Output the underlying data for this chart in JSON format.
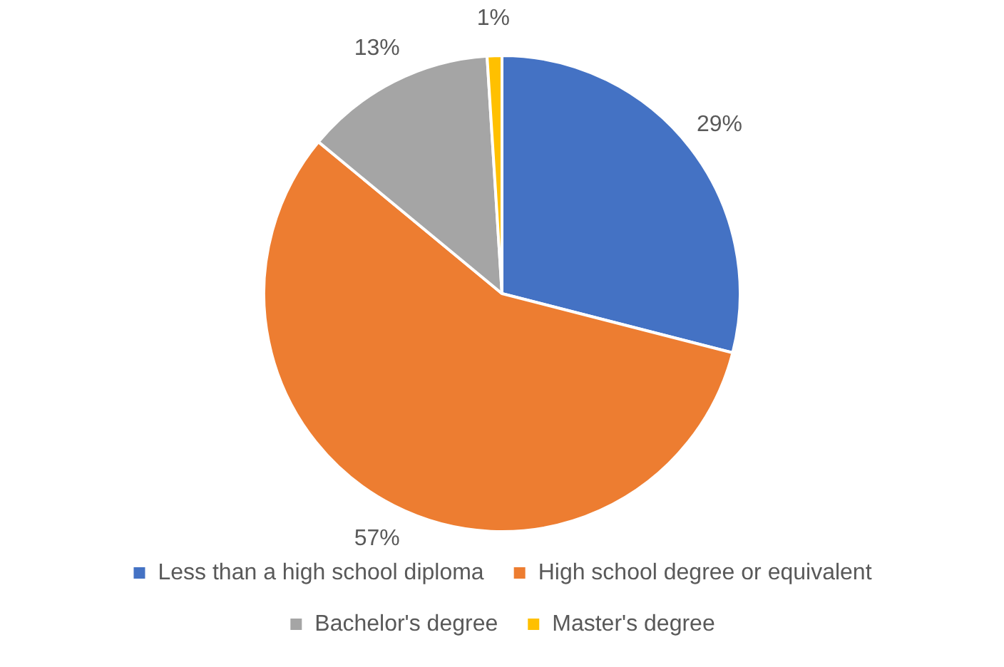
{
  "chart_data": {
    "type": "pie",
    "categories": [
      "Less than a high school diploma",
      "High school degree or equivalent",
      "Bachelor's degree",
      "Master's degree"
    ],
    "values": [
      29,
      57,
      13,
      1
    ],
    "colors": [
      "#4472c4",
      "#ed7d31",
      "#a5a5a5",
      "#ffc000"
    ],
    "value_labels": [
      "29%",
      "57%",
      "13%",
      "1%"
    ],
    "legend": "bottom"
  }
}
